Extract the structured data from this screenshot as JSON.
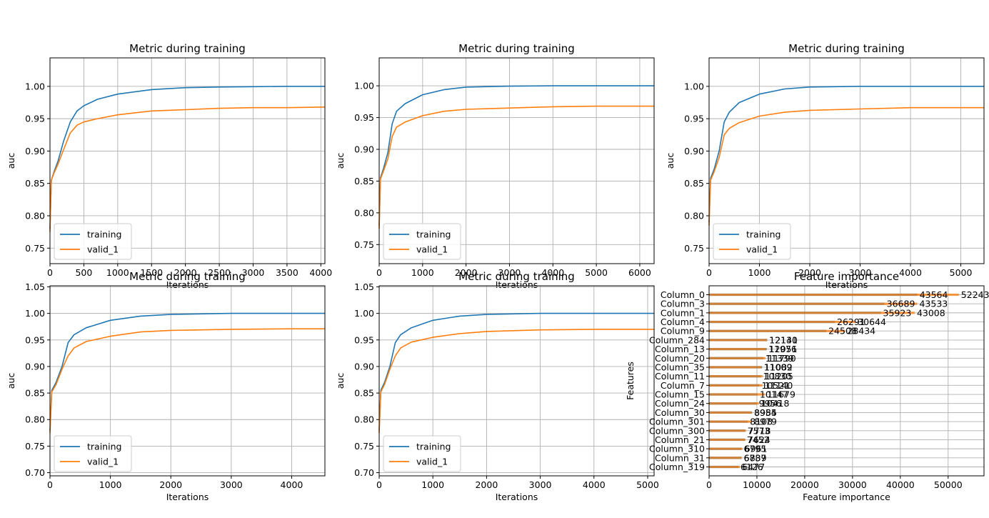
{
  "colors": {
    "training": "#1f77b4",
    "valid": "#ff7f0e",
    "grid": "#b0b0b0"
  },
  "chart_data": [
    {
      "type": "line",
      "title": "Metric during training",
      "xlabel": "Iterations",
      "ylabel": "auc",
      "xlim": [
        0,
        4060
      ],
      "ylim": [
        0.726,
        1.044
      ],
      "xticks": [
        0,
        500,
        1000,
        1500,
        2000,
        2500,
        3000,
        3500,
        4000
      ],
      "yticks": [
        0.75,
        0.8,
        0.85,
        0.9,
        0.95,
        1.0
      ],
      "ytick_labels": [
        "0.75",
        "0.80",
        "0.85",
        "0.90",
        "0.95",
        "1.00"
      ],
      "grid": true,
      "legend": "lower-left",
      "series": [
        {
          "name": "training",
          "color": "#1f77b4",
          "x": [
            0,
            20,
            60,
            120,
            200,
            300,
            400,
            500,
            700,
            1000,
            1500,
            2000,
            2500,
            3000,
            3500,
            4060
          ],
          "y": [
            0.78,
            0.855,
            0.868,
            0.885,
            0.915,
            0.945,
            0.962,
            0.97,
            0.98,
            0.988,
            0.995,
            0.998,
            0.999,
            0.9995,
            1.0,
            1.0
          ]
        },
        {
          "name": "valid_1",
          "color": "#ff7f0e",
          "x": [
            0,
            20,
            60,
            120,
            200,
            300,
            400,
            500,
            700,
            1000,
            1500,
            2000,
            2500,
            3000,
            3500,
            4060
          ],
          "y": [
            0.775,
            0.855,
            0.866,
            0.88,
            0.902,
            0.928,
            0.94,
            0.945,
            0.95,
            0.956,
            0.962,
            0.964,
            0.966,
            0.967,
            0.967,
            0.968
          ]
        }
      ]
    },
    {
      "type": "line",
      "title": "Metric during training",
      "xlabel": "Iterations",
      "ylabel": "auc",
      "xlim": [
        0,
        6330
      ],
      "ylim": [
        0.72,
        1.044
      ],
      "xticks": [
        0,
        1000,
        2000,
        3000,
        4000,
        5000,
        6000
      ],
      "yticks": [
        0.75,
        0.8,
        0.85,
        0.9,
        0.95,
        1.0
      ],
      "ytick_labels": [
        "0.75",
        "0.80",
        "0.85",
        "0.90",
        "0.95",
        "1.00"
      ],
      "grid": true,
      "legend": "lower-left",
      "series": [
        {
          "name": "training",
          "color": "#1f77b4",
          "x": [
            0,
            30,
            100,
            200,
            300,
            400,
            600,
            1000,
            1500,
            2000,
            3000,
            4000,
            5000,
            6330
          ],
          "y": [
            0.78,
            0.855,
            0.87,
            0.895,
            0.94,
            0.96,
            0.972,
            0.986,
            0.994,
            0.998,
            0.9995,
            1.0,
            1.0,
            1.0
          ]
        },
        {
          "name": "valid_1",
          "color": "#ff7f0e",
          "x": [
            0,
            30,
            100,
            200,
            300,
            400,
            600,
            1000,
            1500,
            2000,
            3000,
            4000,
            5000,
            6330
          ],
          "y": [
            0.775,
            0.853,
            0.866,
            0.885,
            0.92,
            0.935,
            0.943,
            0.953,
            0.96,
            0.963,
            0.965,
            0.967,
            0.968,
            0.968
          ]
        }
      ]
    },
    {
      "type": "line",
      "title": "Metric during training",
      "xlabel": "Iterations",
      "ylabel": "auc",
      "xlim": [
        0,
        5460
      ],
      "ylim": [
        0.726,
        1.044
      ],
      "xticks": [
        0,
        1000,
        2000,
        3000,
        4000,
        5000
      ],
      "yticks": [
        0.75,
        0.8,
        0.85,
        0.9,
        0.95,
        1.0
      ],
      "ytick_labels": [
        "0.75",
        "0.80",
        "0.85",
        "0.90",
        "0.95",
        "1.00"
      ],
      "grid": true,
      "legend": "lower-left",
      "series": [
        {
          "name": "training",
          "color": "#1f77b4",
          "x": [
            0,
            30,
            100,
            200,
            300,
            400,
            600,
            1000,
            1500,
            2000,
            3000,
            4000,
            5460
          ],
          "y": [
            0.79,
            0.858,
            0.872,
            0.9,
            0.945,
            0.96,
            0.975,
            0.988,
            0.996,
            0.999,
            1.0,
            1.0,
            1.0
          ]
        },
        {
          "name": "valid_1",
          "color": "#ff7f0e",
          "x": [
            0,
            30,
            100,
            200,
            300,
            400,
            600,
            1000,
            1500,
            2000,
            3000,
            4000,
            5460
          ],
          "y": [
            0.785,
            0.855,
            0.868,
            0.89,
            0.925,
            0.935,
            0.944,
            0.954,
            0.96,
            0.963,
            0.965,
            0.967,
            0.967
          ]
        }
      ]
    },
    {
      "type": "line",
      "title": "Metric during training",
      "xlabel": "Iterations",
      "ylabel": "auc",
      "xlim": [
        0,
        4550
      ],
      "ylim": [
        0.694,
        1.052
      ],
      "xticks": [
        0,
        1000,
        2000,
        3000,
        4000
      ],
      "yticks": [
        0.7,
        0.75,
        0.8,
        0.85,
        0.9,
        0.95,
        1.0,
        1.05
      ],
      "ytick_labels": [
        "0.70",
        "0.75",
        "0.80",
        "0.85",
        "0.90",
        "0.95",
        "1.00",
        "1.05"
      ],
      "grid": true,
      "legend": "lower-left",
      "series": [
        {
          "name": "training",
          "color": "#1f77b4",
          "x": [
            0,
            30,
            100,
            200,
            300,
            400,
            600,
            1000,
            1500,
            2000,
            3000,
            4000,
            4550
          ],
          "y": [
            0.78,
            0.855,
            0.87,
            0.9,
            0.945,
            0.96,
            0.973,
            0.987,
            0.995,
            0.998,
            1.0,
            1.0,
            1.0
          ]
        },
        {
          "name": "valid_1",
          "color": "#ff7f0e",
          "x": [
            0,
            30,
            100,
            200,
            300,
            400,
            600,
            1000,
            1500,
            2000,
            3000,
            4000,
            4550
          ],
          "y": [
            0.775,
            0.852,
            0.866,
            0.895,
            0.92,
            0.935,
            0.947,
            0.957,
            0.965,
            0.968,
            0.97,
            0.971,
            0.971
          ]
        }
      ]
    },
    {
      "type": "line",
      "title": "Metric during training",
      "xlabel": "Iterations",
      "ylabel": "auc",
      "xlim": [
        0,
        5120
      ],
      "ylim": [
        0.694,
        1.052
      ],
      "xticks": [
        0,
        1000,
        2000,
        3000,
        4000,
        5000
      ],
      "yticks": [
        0.7,
        0.75,
        0.8,
        0.85,
        0.9,
        0.95,
        1.0,
        1.05
      ],
      "ytick_labels": [
        "0.70",
        "0.75",
        "0.80",
        "0.85",
        "0.90",
        "0.95",
        "1.00",
        "1.05"
      ],
      "grid": true,
      "legend": "lower-left",
      "series": [
        {
          "name": "training",
          "color": "#1f77b4",
          "x": [
            0,
            30,
            100,
            200,
            300,
            400,
            600,
            1000,
            1500,
            2000,
            3000,
            4000,
            5120
          ],
          "y": [
            0.78,
            0.855,
            0.87,
            0.9,
            0.945,
            0.96,
            0.973,
            0.987,
            0.995,
            0.998,
            1.0,
            1.0,
            1.0
          ]
        },
        {
          "name": "valid_1",
          "color": "#ff7f0e",
          "x": [
            0,
            30,
            100,
            200,
            300,
            400,
            600,
            1000,
            1500,
            2000,
            3000,
            4000,
            5120
          ],
          "y": [
            0.775,
            0.852,
            0.866,
            0.895,
            0.92,
            0.935,
            0.946,
            0.955,
            0.962,
            0.966,
            0.969,
            0.97,
            0.97
          ]
        }
      ]
    },
    {
      "type": "bar",
      "orientation": "horizontal",
      "title": "Feature importance",
      "xlabel": "Feature importance",
      "ylabel": "Features",
      "xlim": [
        0,
        57500
      ],
      "xticks": [
        0,
        10000,
        20000,
        30000,
        40000,
        50000
      ],
      "grid": true,
      "categories": [
        "Column_0",
        "Column_3",
        "Column_1",
        "Column_4",
        "Column_9",
        "Column_284",
        "Column_13",
        "Column_20",
        "Column_35",
        "Column_11",
        "Column_7",
        "Column_15",
        "Column_24",
        "Column_30",
        "Column_301",
        "Column_300",
        "Column_21",
        "Column_310",
        "Column_31",
        "Column_319"
      ],
      "series": [
        {
          "name": "",
          "values": [
            43564,
            36689,
            35923,
            26291,
            24508,
            12141,
            12051,
            11339,
            11082,
            10830,
            10521,
            10147,
            9956,
            8985,
            8108,
            7573,
            7452,
            6795,
            6787,
            6126
          ]
        },
        {
          "name": "",
          "values": [
            52243,
            43533,
            43008,
            30644,
            28434,
            12130,
            11976,
            11790,
            11009,
            11205,
            11140,
            11679,
            10418,
            8954,
            8979,
            7718,
            7624,
            6961,
            6839,
            6477
          ]
        }
      ],
      "value_labels": [
        [
          "43564",
          "52243"
        ],
        [
          "36689",
          "43533"
        ],
        [
          "35923",
          "43008"
        ],
        [
          "26291",
          "30644"
        ],
        [
          "24508",
          "28434"
        ],
        [
          "12141",
          "12130"
        ],
        [
          "12051",
          "11976"
        ],
        [
          "11339",
          "11790"
        ],
        [
          "11082",
          "11009"
        ],
        [
          "10830",
          "11205"
        ],
        [
          "10521",
          "11140"
        ],
        [
          "10147",
          "11679"
        ],
        [
          "9956",
          "10418"
        ],
        [
          "8985",
          "8954"
        ],
        [
          "8108",
          "8979"
        ],
        [
          "7573",
          "7718"
        ],
        [
          "7452",
          "7624"
        ],
        [
          "6795",
          "6961"
        ],
        [
          "6787",
          "6839"
        ],
        [
          "6126",
          "6477"
        ]
      ]
    }
  ]
}
